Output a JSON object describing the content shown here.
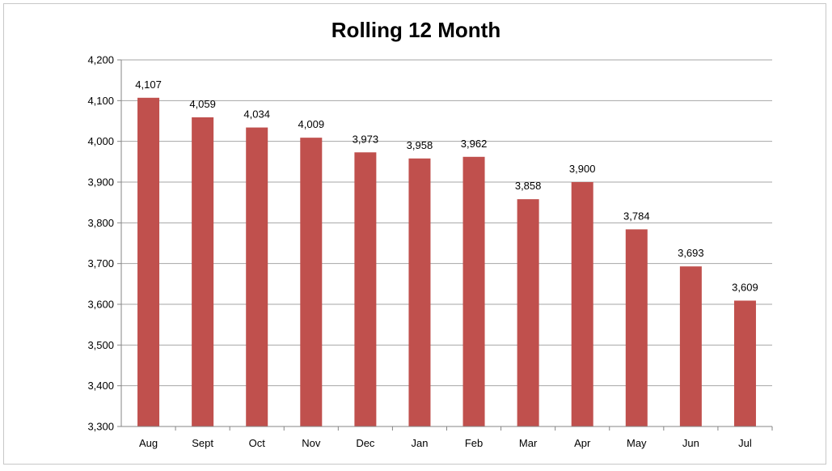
{
  "chart_data": {
    "type": "bar",
    "title": "Rolling 12 Month",
    "xlabel": "",
    "ylabel": "",
    "categories": [
      "Aug",
      "Sept",
      "Oct",
      "Nov",
      "Dec",
      "Jan",
      "Feb",
      "Mar",
      "Apr",
      "May",
      "Jun",
      "Jul"
    ],
    "values": [
      4107,
      4059,
      4034,
      4009,
      3973,
      3958,
      3962,
      3858,
      3900,
      3784,
      3693,
      3609
    ],
    "value_labels": [
      "4,107",
      "4,059",
      "4,034",
      "4,009",
      "3,973",
      "3,958",
      "3,962",
      "3,858",
      "3,900",
      "3,784",
      "3,693",
      "3,609"
    ],
    "ylim": [
      3300,
      4200
    ],
    "y_ticks": [
      3300,
      3400,
      3500,
      3600,
      3700,
      3800,
      3900,
      4000,
      4100,
      4200
    ],
    "y_tick_labels": [
      "3,300",
      "3,400",
      "3,500",
      "3,600",
      "3,700",
      "3,800",
      "3,900",
      "4,000",
      "4,100",
      "4,200"
    ],
    "grid": true,
    "legend": "none",
    "colors": {
      "bar": "#c0504d",
      "grid": "#a6a6a6",
      "axis": "#868686"
    }
  }
}
